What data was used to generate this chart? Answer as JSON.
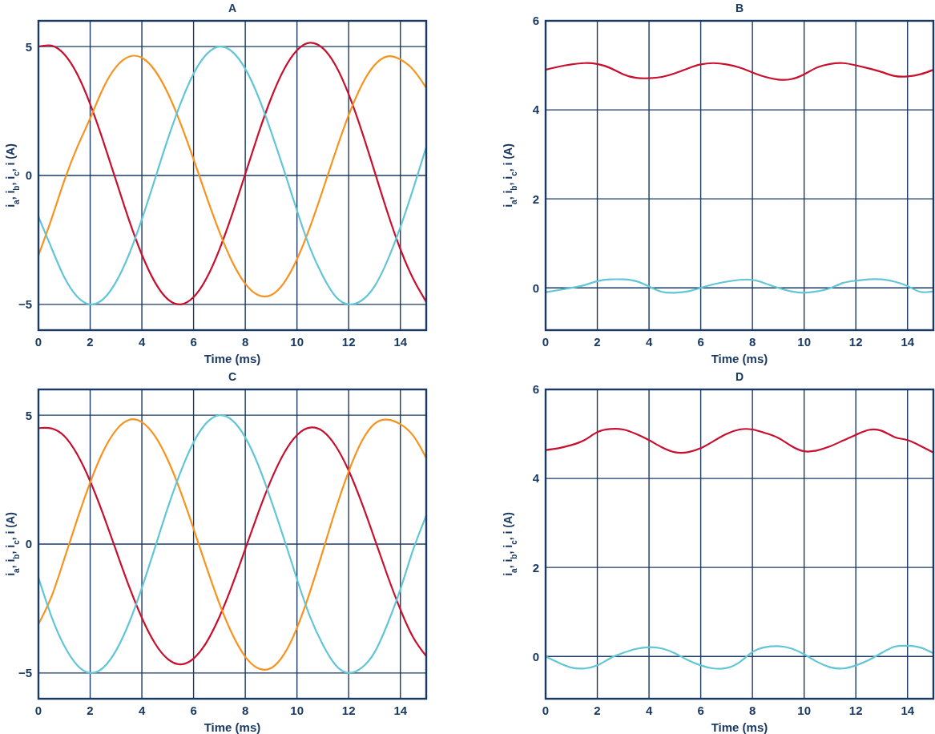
{
  "chart_data": [
    {
      "type": "line",
      "title": "A",
      "xlabel": "Time (ms)",
      "ylabel": "i$_{a}$, i$_{b}$, i$_{c}$, i (A)",
      "x": [
        0,
        0.5,
        1,
        1.5,
        2,
        2.5,
        3,
        3.5,
        4,
        4.5,
        5,
        5.5,
        6,
        6.5,
        7,
        7.5,
        8,
        8.5,
        9,
        9.5,
        10,
        10.5,
        11,
        11.5,
        12,
        12.5,
        13,
        13.5,
        14,
        14.5,
        15
      ],
      "xlim": [
        0,
        15
      ],
      "xticks": [
        0,
        2,
        4,
        6,
        8,
        10,
        12,
        14
      ],
      "ylim": [
        -6,
        6
      ],
      "yticks": [
        {
          "value": -5,
          "label": "−5"
        },
        0,
        5
      ],
      "grid": true,
      "series": [
        {
          "color": "#c8102e",
          "values": [
            5.0,
            5.04,
            4.7,
            3.93,
            2.77,
            1.35,
            -0.19,
            -1.72,
            -3.07,
            -4.13,
            -4.8,
            -5.0,
            -4.72,
            -3.99,
            -2.87,
            -1.48,
            0.06,
            1.6,
            3.0,
            4.12,
            4.86,
            5.15,
            4.94,
            4.26,
            3.15,
            1.74,
            0.16,
            -1.43,
            -2.86,
            -4.02,
            -4.9
          ]
        },
        {
          "color": "#f7931e",
          "values": [
            -3.1,
            -1.7,
            -0.2,
            1.1,
            2.22,
            3.38,
            4.21,
            4.61,
            4.57,
            4.08,
            3.2,
            2.01,
            0.63,
            -0.82,
            -2.19,
            -3.36,
            -4.2,
            -4.64,
            -4.64,
            -4.16,
            -3.25,
            -2.01,
            -0.56,
            0.94,
            2.34,
            3.5,
            4.28,
            4.62,
            4.5,
            4.1,
            3.4
          ]
        },
        {
          "color": "#62c6d6",
          "values": [
            -1.6,
            -2.8,
            -3.95,
            -4.7,
            -5.0,
            -4.8,
            -4.13,
            -3.07,
            -1.7,
            -0.16,
            1.4,
            2.8,
            3.95,
            4.7,
            5.0,
            4.8,
            4.14,
            3.07,
            1.7,
            0.2,
            -1.36,
            -2.8,
            -3.9,
            -4.7,
            -5.0,
            -4.85,
            -4.3,
            -3.3,
            -2.0,
            -0.5,
            1.1
          ]
        }
      ]
    },
    {
      "type": "line",
      "title": "B",
      "xlabel": "Time (ms)",
      "ylabel": "i$_{a}$, i$_{b}$, i$_{c}$, i (A)",
      "x": [
        0,
        0.5,
        1,
        1.5,
        2,
        2.5,
        3,
        3.5,
        4,
        4.5,
        5,
        5.5,
        6,
        6.5,
        7,
        7.5,
        8,
        8.5,
        9,
        9.5,
        10,
        10.5,
        11,
        11.5,
        12,
        12.5,
        13,
        13.5,
        14,
        14.5,
        15
      ],
      "xlim": [
        0,
        15
      ],
      "xticks": [
        0,
        2,
        4,
        6,
        8,
        10,
        12,
        14
      ],
      "ylim": [
        -0.95,
        6
      ],
      "yticks": [
        0,
        2,
        4,
        6
      ],
      "grid": true,
      "series": [
        {
          "color": "#c8102e",
          "values": [
            4.9,
            4.97,
            5.02,
            5.05,
            5.03,
            4.94,
            4.8,
            4.72,
            4.71,
            4.74,
            4.82,
            4.93,
            5.02,
            5.05,
            5.02,
            4.95,
            4.84,
            4.74,
            4.68,
            4.69,
            4.8,
            4.95,
            5.03,
            5.05,
            5.0,
            4.93,
            4.85,
            4.76,
            4.75,
            4.8,
            4.9
          ]
        },
        {
          "color": "#62c6d6",
          "values": [
            -0.1,
            -0.05,
            0.0,
            0.06,
            0.15,
            0.19,
            0.19,
            0.15,
            0.03,
            -0.09,
            -0.11,
            -0.08,
            0.0,
            0.08,
            0.14,
            0.18,
            0.18,
            0.1,
            0.0,
            -0.08,
            -0.11,
            -0.08,
            -0.01,
            0.11,
            0.16,
            0.19,
            0.19,
            0.14,
            0.04,
            -0.09,
            -0.08
          ]
        }
      ]
    },
    {
      "type": "line",
      "title": "C",
      "xlabel": "Time (ms)",
      "ylabel": "i$_{a}$, i$_{b}$, i$_{c}$, i (A)",
      "x": [
        0,
        0.5,
        1,
        1.5,
        2,
        2.5,
        3,
        3.5,
        4,
        4.5,
        5,
        5.5,
        6,
        6.5,
        7,
        7.5,
        8,
        8.5,
        9,
        9.5,
        10,
        10.5,
        11,
        11.5,
        12,
        12.5,
        13,
        13.5,
        14,
        14.5,
        15
      ],
      "xlim": [
        0,
        15
      ],
      "xticks": [
        0,
        2,
        4,
        6,
        8,
        10,
        12,
        14
      ],
      "ylim": [
        -6,
        6
      ],
      "yticks": [
        {
          "value": -5,
          "label": "−5"
        },
        0,
        5
      ],
      "grid": true,
      "series": [
        {
          "color": "#c8102e",
          "values": [
            4.5,
            4.49,
            4.19,
            3.48,
            2.44,
            1.16,
            -0.24,
            -1.63,
            -2.86,
            -3.84,
            -4.46,
            -4.67,
            -4.44,
            -3.81,
            -2.82,
            -1.58,
            -0.19,
            1.21,
            2.49,
            3.53,
            4.23,
            4.52,
            4.38,
            3.8,
            2.85,
            1.61,
            0.21,
            -1.22,
            -2.54,
            -3.63,
            -4.35
          ]
        },
        {
          "color": "#f7931e",
          "values": [
            -3.1,
            -2.05,
            -0.57,
            0.96,
            2.39,
            3.59,
            4.42,
            4.82,
            4.73,
            4.2,
            3.27,
            2.03,
            0.59,
            -0.9,
            -2.31,
            -3.5,
            -4.37,
            -4.82,
            -4.81,
            -4.27,
            -3.25,
            -1.86,
            -0.27,
            1.36,
            2.82,
            3.98,
            4.67,
            4.83,
            4.65,
            4.2,
            3.34
          ]
        },
        {
          "color": "#62c6d6",
          "values": [
            -1.3,
            -2.8,
            -3.95,
            -4.7,
            -5.0,
            -4.8,
            -4.13,
            -3.07,
            -1.7,
            -0.16,
            1.4,
            2.8,
            3.95,
            4.7,
            5.0,
            4.8,
            4.14,
            3.07,
            1.7,
            0.2,
            -1.36,
            -2.8,
            -3.9,
            -4.7,
            -5.0,
            -4.8,
            -4.2,
            -3.1,
            -1.75,
            -0.2,
            1.1
          ]
        }
      ]
    },
    {
      "type": "line",
      "title": "D",
      "xlabel": "Time (ms)",
      "ylabel": "i$_{a}$, i$_{b}$, i$_{c}$, i (A)",
      "x": [
        0,
        0.5,
        1,
        1.5,
        2,
        2.5,
        3,
        3.5,
        4,
        4.5,
        5,
        5.5,
        6,
        6.5,
        7,
        7.5,
        8,
        8.5,
        9,
        9.5,
        10,
        10.5,
        11,
        11.5,
        12,
        12.5,
        13,
        13.5,
        14,
        14.5,
        15
      ],
      "xlim": [
        0,
        15
      ],
      "xticks": [
        0,
        2,
        4,
        6,
        8,
        10,
        12,
        14
      ],
      "ylim": [
        -0.95,
        6
      ],
      "yticks": [
        0,
        2,
        4,
        6
      ],
      "grid": true,
      "series": [
        {
          "color": "#c8102e",
          "values": [
            4.64,
            4.68,
            4.75,
            4.86,
            5.04,
            5.11,
            5.1,
            5.0,
            4.86,
            4.7,
            4.59,
            4.59,
            4.68,
            4.84,
            5.0,
            5.1,
            5.1,
            5.02,
            4.91,
            4.73,
            4.61,
            4.63,
            4.72,
            4.85,
            4.98,
            5.09,
            5.07,
            4.93,
            4.86,
            4.73,
            4.58
          ]
        },
        {
          "color": "#62c6d6",
          "values": [
            0.0,
            -0.14,
            -0.25,
            -0.27,
            -0.2,
            -0.04,
            0.08,
            0.17,
            0.21,
            0.18,
            0.07,
            -0.08,
            -0.2,
            -0.27,
            -0.26,
            -0.13,
            0.1,
            0.21,
            0.23,
            0.18,
            0.05,
            -0.12,
            -0.24,
            -0.27,
            -0.2,
            -0.08,
            0.08,
            0.22,
            0.24,
            0.2,
            0.07
          ]
        }
      ]
    }
  ]
}
